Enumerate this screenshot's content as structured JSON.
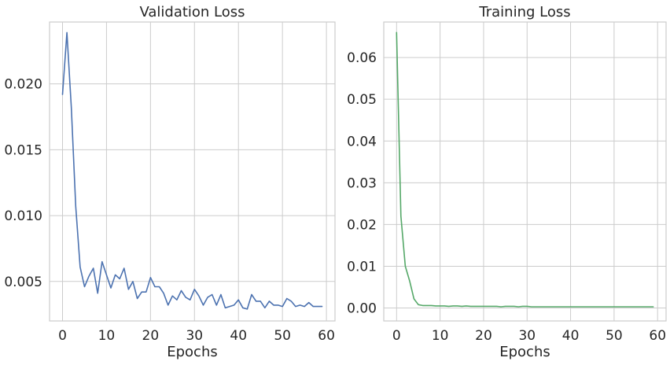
{
  "chart_data": [
    {
      "type": "line",
      "title": "Validation Loss",
      "xlabel": "Epochs",
      "ylabel": "",
      "xlim": [
        -2.95,
        61.95
      ],
      "ylim": [
        0.002,
        0.0247
      ],
      "xticks": [
        0,
        10,
        20,
        30,
        40,
        50,
        60
      ],
      "xtick_labels": [
        "0",
        "10",
        "20",
        "30",
        "40",
        "50",
        "60"
      ],
      "yticks": [
        0.005,
        0.01,
        0.015,
        0.02
      ],
      "ytick_labels": [
        "0.005",
        "0.010",
        "0.015",
        "0.020"
      ],
      "grid": true,
      "legend": "none",
      "series": [
        {
          "color": "#4c72b0",
          "x": [
            0,
            1,
            2,
            3,
            4,
            5,
            6,
            7,
            8,
            9,
            10,
            11,
            12,
            13,
            14,
            15,
            16,
            17,
            18,
            19,
            20,
            21,
            22,
            23,
            24,
            25,
            26,
            27,
            28,
            29,
            30,
            31,
            32,
            33,
            34,
            35,
            36,
            37,
            38,
            39,
            40,
            41,
            42,
            43,
            44,
            45,
            46,
            47,
            48,
            49,
            50,
            51,
            52,
            53,
            54,
            55,
            56,
            57,
            58,
            59
          ],
          "values": [
            0.0192,
            0.0239,
            0.0182,
            0.0107,
            0.0061,
            0.0046,
            0.0054,
            0.006,
            0.0041,
            0.0065,
            0.0055,
            0.0045,
            0.0055,
            0.0052,
            0.006,
            0.0044,
            0.005,
            0.0037,
            0.0042,
            0.0042,
            0.0053,
            0.0046,
            0.0046,
            0.0041,
            0.0032,
            0.0039,
            0.0036,
            0.0043,
            0.0038,
            0.0036,
            0.0044,
            0.0039,
            0.0032,
            0.0038,
            0.004,
            0.0032,
            0.004,
            0.003,
            0.0031,
            0.0032,
            0.0036,
            0.003,
            0.0029,
            0.004,
            0.0035,
            0.0035,
            0.003,
            0.0035,
            0.0032,
            0.0032,
            0.0031,
            0.0037,
            0.0035,
            0.0031,
            0.0032,
            0.0031,
            0.0034,
            0.0031,
            0.0031,
            0.0031
          ]
        }
      ]
    },
    {
      "type": "line",
      "title": "Training Loss",
      "xlabel": "Epochs",
      "ylabel": "",
      "xlim": [
        -2.95,
        61.95
      ],
      "ylim": [
        -0.0031,
        0.0685
      ],
      "xticks": [
        0,
        10,
        20,
        30,
        40,
        50,
        60
      ],
      "xtick_labels": [
        "0",
        "10",
        "20",
        "30",
        "40",
        "50",
        "60"
      ],
      "yticks": [
        0.0,
        0.01,
        0.02,
        0.03,
        0.04,
        0.05,
        0.06
      ],
      "ytick_labels": [
        "0.00",
        "0.01",
        "0.02",
        "0.03",
        "0.04",
        "0.05",
        "0.06"
      ],
      "grid": true,
      "legend": "none",
      "series": [
        {
          "color": "#55a868",
          "x": [
            0,
            1,
            2,
            3,
            4,
            5,
            6,
            7,
            8,
            9,
            10,
            11,
            12,
            13,
            14,
            15,
            16,
            17,
            18,
            19,
            20,
            21,
            22,
            23,
            24,
            25,
            26,
            27,
            28,
            29,
            30,
            31,
            32,
            33,
            34,
            35,
            36,
            37,
            38,
            39,
            40,
            41,
            42,
            43,
            44,
            45,
            46,
            47,
            48,
            49,
            50,
            51,
            52,
            53,
            54,
            55,
            56,
            57,
            58,
            59
          ],
          "values": [
            0.066,
            0.022,
            0.01,
            0.0065,
            0.0022,
            0.0008,
            0.0006,
            0.0006,
            0.0006,
            0.0005,
            0.0005,
            0.0005,
            0.0004,
            0.0005,
            0.0005,
            0.0004,
            0.0005,
            0.0004,
            0.0004,
            0.0004,
            0.0004,
            0.0004,
            0.0004,
            0.0004,
            0.0003,
            0.0004,
            0.0004,
            0.0004,
            0.0003,
            0.0004,
            0.0004,
            0.0003,
            0.0003,
            0.0003,
            0.0003,
            0.0003,
            0.0003,
            0.0003,
            0.0003,
            0.0003,
            0.0003,
            0.0003,
            0.0003,
            0.0003,
            0.0003,
            0.0003,
            0.0003,
            0.0003,
            0.0003,
            0.0003,
            0.0003,
            0.0003,
            0.0003,
            0.0003,
            0.0003,
            0.0003,
            0.0003,
            0.0003,
            0.0003,
            0.0003
          ]
        }
      ]
    }
  ]
}
